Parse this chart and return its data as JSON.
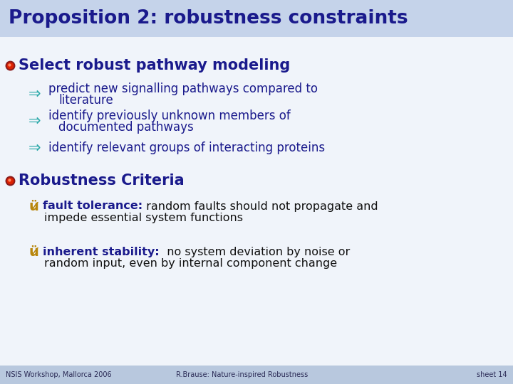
{
  "title": "Proposition 2: robustness constraints",
  "title_color": "#1a1a8c",
  "title_fontsize": 19,
  "title_bold": true,
  "bg_color": "#dce6f5",
  "header_bg": "#c5d3ea",
  "footer_bg": "#b8c8de",
  "content_bg": "#f0f4fa",
  "footer_texts": [
    "NSIS Workshop, Mallorca 2006",
    "R.Brause: Nature-inspired Robustness",
    "sheet 14"
  ],
  "footer_fontsize": 7,
  "bullet1_text": "Select robust pathway modeling",
  "bullet1_color": "#1a1a8c",
  "bullet1_size": 15,
  "sub_bullet_color": "#1a1a8c",
  "sub_bullet_size": 12,
  "sub_bullets": [
    [
      "predict new signalling pathways compared to",
      "literature"
    ],
    [
      "identify previously unknown members of",
      "documented pathways"
    ],
    [
      "identify relevant groups of interacting proteins"
    ]
  ],
  "bullet2_text": "Robustness Criteria",
  "bullet2_color": "#1a1a8c",
  "bullet2_size": 15,
  "check_color": "#b8860b",
  "check_items": [
    {
      "bold": "fault tolerance:",
      "normal": " random faults should not propagate and",
      "line2": "impede essential system functions"
    },
    {
      "bold": "inherent stability:",
      "normal": "  no system deviation by noise or",
      "line2": "random input, even by internal component change"
    }
  ],
  "check_bold_color": "#1a1a8c",
  "check_normal_color": "#111111",
  "check_size": 11.5,
  "arrow_color": "#2aa8a8",
  "bullet_dot_outer": "#8b1a1a",
  "bullet_dot_inner": "#cc2200"
}
